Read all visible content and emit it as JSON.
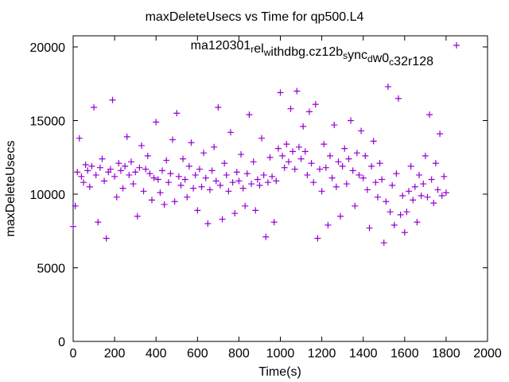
{
  "chart_data": {
    "type": "scatter",
    "title": "maxDeleteUsecs vs Time for qp500.L4",
    "xlabel": "Time(s)",
    "ylabel": "maxDeleteUsecs",
    "xlim": [
      0,
      2000
    ],
    "ylim": [
      0,
      20000
    ],
    "xticks": [
      0,
      200,
      400,
      600,
      800,
      1000,
      1200,
      1400,
      1600,
      1800,
      2000
    ],
    "yticks": [
      0,
      5000,
      10000,
      15000,
      20000
    ],
    "grid": false,
    "legend_position": "top-right",
    "marker": "plus",
    "series": [
      {
        "name": "ma120301_rel_withdbg.cz12b_sync_dw0_c32r128",
        "color": "#9400d3",
        "x_start": 0,
        "x_step": 10,
        "values": [
          7800,
          9200,
          11500,
          13800,
          11200,
          10800,
          12000,
          11600,
          10500,
          11900,
          15900,
          11300,
          8100,
          11800,
          12400,
          10900,
          7000,
          11500,
          11700,
          16400,
          11200,
          9800,
          12100,
          11600,
          10400,
          11900,
          13900,
          11300,
          12200,
          10700,
          11500,
          8500,
          11800,
          13300,
          10200,
          11700,
          12600,
          11400,
          9600,
          11100,
          14900,
          11000,
          10100,
          11600,
          9300,
          12300,
          10800,
          11400,
          13700,
          9500,
          15500,
          11200,
          10600,
          12400,
          11000,
          9800,
          11900,
          13500,
          10400,
          11300,
          8900,
          11700,
          10500,
          12800,
          11100,
          8000,
          10300,
          11600,
          13200,
          10900,
          15900,
          10600,
          8300,
          12100,
          11300,
          10200,
          14200,
          10800,
          8700,
          11500,
          10900,
          12700,
          10400,
          9200,
          11400,
          15400,
          10700,
          12200,
          8900,
          11000,
          10600,
          13800,
          11300,
          7100,
          10800,
          12500,
          11200,
          8100,
          10900,
          13100,
          16900,
          12600,
          11800,
          13400,
          12200,
          15800,
          12900,
          11700,
          17000,
          13200,
          12400,
          14600,
          12900,
          11300,
          15600,
          12100,
          10800,
          16100,
          7000,
          11700,
          10200,
          13400,
          11800,
          7900,
          12600,
          11100,
          14700,
          10500,
          12200,
          8500,
          11900,
          13100,
          10700,
          12400,
          15000,
          11600,
          9200,
          12800,
          11300,
          14300,
          11100,
          12600,
          10300,
          7700,
          11900,
          13600,
          10800,
          9800,
          12100,
          11000,
          6700,
          9500,
          17300,
          8800,
          10600,
          7900,
          11400,
          16500,
          8600,
          9900,
          7400,
          8800,
          10200,
          11900,
          9600,
          10500,
          8100,
          11300,
          9900,
          10700,
          12600,
          9800,
          15400,
          11000,
          9400,
          12100,
          10300,
          14100,
          9900,
          11200,
          10100
        ]
      }
    ]
  }
}
